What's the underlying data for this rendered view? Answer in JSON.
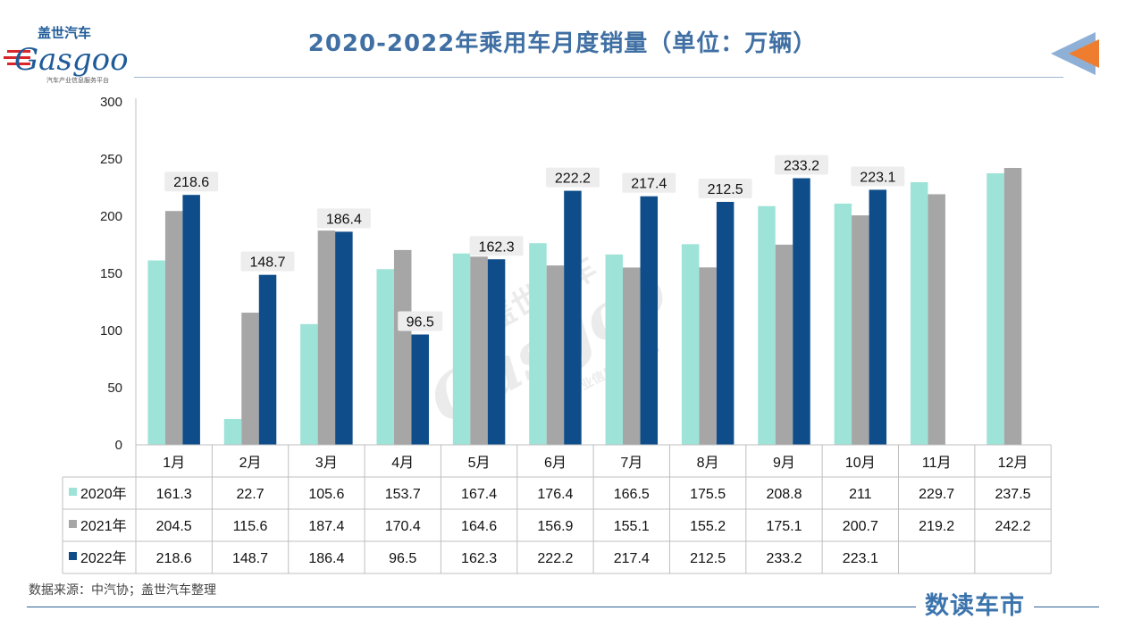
{
  "header": {
    "title": "2020-2022年乘用车月度销量（单位：万辆）",
    "logo_cn": "盖世汽车",
    "logo_en": "Gasgoo",
    "logo_tagline": "汽车产业信息服务平台"
  },
  "footer": {
    "source": "数据来源：中汽协；盖世汽车整理",
    "brand": "数读车市"
  },
  "watermark": {
    "cn": "盖世汽车",
    "en": "Gasgoo",
    "tagline": "汽车产业信息服务平台"
  },
  "colors": {
    "s2020": "#9ee3d8",
    "s2021": "#a6a6a6",
    "s2022": "#0e4d8a",
    "title": "#3f6fa3",
    "accent_orange": "#ef7d2f"
  },
  "chart_data": {
    "type": "bar",
    "categories": [
      "1月",
      "2月",
      "3月",
      "4月",
      "5月",
      "6月",
      "7月",
      "8月",
      "9月",
      "10月",
      "11月",
      "12月"
    ],
    "series": [
      {
        "name": "2020年",
        "values": [
          161.3,
          22.7,
          105.6,
          153.7,
          167.4,
          176.4,
          166.5,
          175.5,
          208.8,
          211,
          229.7,
          237.5
        ]
      },
      {
        "name": "2021年",
        "values": [
          204.5,
          115.6,
          187.4,
          170.4,
          164.6,
          156.9,
          155.1,
          155.2,
          175.1,
          200.7,
          219.2,
          242.2
        ]
      },
      {
        "name": "2022年",
        "values": [
          218.6,
          148.7,
          186.4,
          96.5,
          162.3,
          222.2,
          217.4,
          212.5,
          233.2,
          223.1,
          null,
          null
        ]
      }
    ],
    "labeled_series": "2022年",
    "ylim": [
      0,
      300
    ],
    "yticks": [
      0,
      50,
      100,
      150,
      200,
      250,
      300
    ],
    "grid": false,
    "legend": "data-table"
  }
}
